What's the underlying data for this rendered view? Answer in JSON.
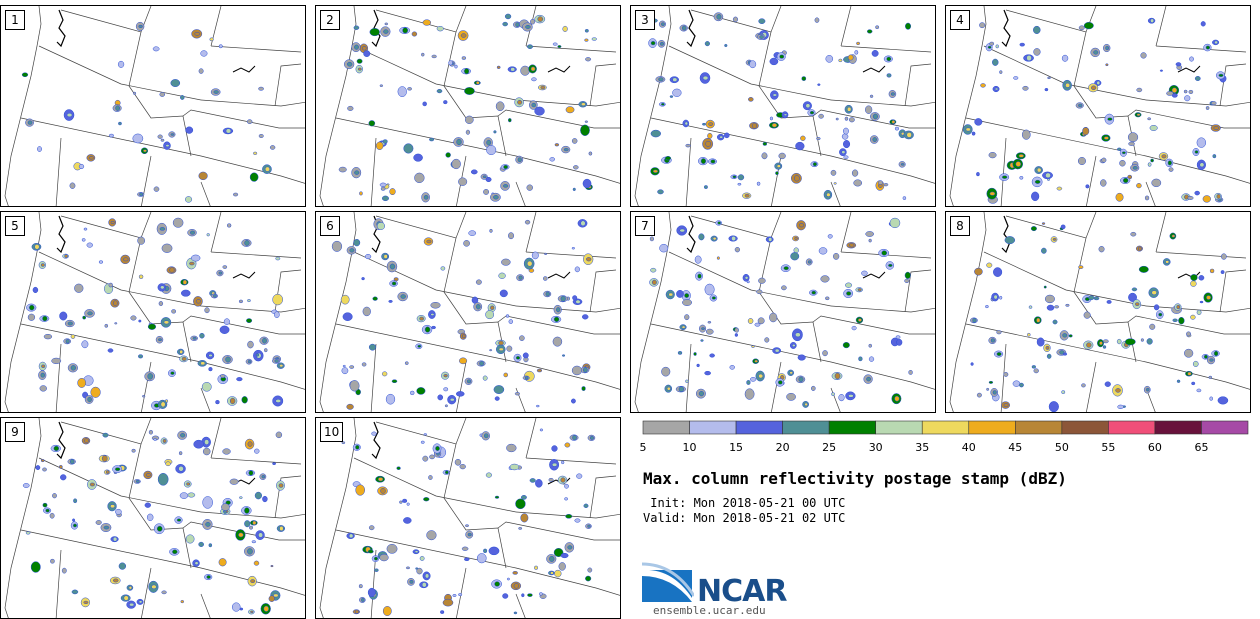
{
  "panels": [
    {
      "label": "1"
    },
    {
      "label": "2"
    },
    {
      "label": "3"
    },
    {
      "label": "4"
    },
    {
      "label": "5"
    },
    {
      "label": "6"
    },
    {
      "label": "7"
    },
    {
      "label": "8"
    },
    {
      "label": "9"
    },
    {
      "label": "10"
    }
  ],
  "colorbar": {
    "ticks": [
      "5",
      "10",
      "15",
      "20",
      "25",
      "30",
      "35",
      "40",
      "45",
      "50",
      "55",
      "60",
      "65"
    ],
    "colors": [
      "#a6a6a6",
      "#b4bcec",
      "#5563dd",
      "#4f8f95",
      "#008000",
      "#b9d9b2",
      "#eed95e",
      "#eeac1e",
      "#b88636",
      "#8c5638",
      "#f04f79",
      "#68123b",
      "#a64aa6"
    ]
  },
  "title": "Max. column reflectivity postage stamp (dBZ)",
  "init_line": " Init: Mon 2018-05-21 00 UTC",
  "valid_line": "Valid: Mon 2018-05-21 02 UTC",
  "logo": {
    "name": "NCAR",
    "url": "ensemble.ucar.edu"
  }
}
